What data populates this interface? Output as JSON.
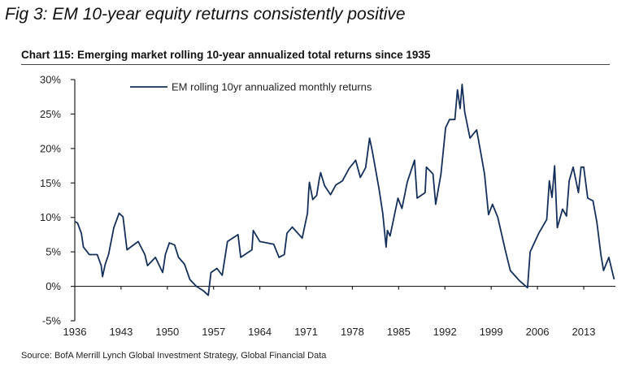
{
  "figure_title": "Fig 3: EM 10-year equity returns consistently positive",
  "source": "Source: BofA Merrill Lynch Global Investment Strategy, Global Financial Data",
  "chart_data": {
    "type": "line",
    "title": "Chart 115: Emerging market rolling 10-year annualized total returns since 1935",
    "xlabel": "",
    "ylabel": "",
    "xlim": [
      1936,
      2017.8
    ],
    "ylim": [
      -5,
      30
    ],
    "x_ticks": [
      1936,
      1943,
      1950,
      1957,
      1964,
      1971,
      1978,
      1985,
      1992,
      1999,
      2006,
      2013
    ],
    "y_ticks": [
      -5,
      0,
      5,
      10,
      15,
      20,
      25,
      30
    ],
    "y_tick_labels": [
      "-5%",
      "0%",
      "5%",
      "10%",
      "15%",
      "20%",
      "25%",
      "30%"
    ],
    "grid": false,
    "legend_position": "top-left",
    "line_color": "#14305a",
    "series": [
      {
        "name": "EM rolling 10yr annualized monthly returns",
        "points": [
          [
            1936.0,
            9.4
          ],
          [
            1936.4,
            9.2
          ],
          [
            1937.0,
            7.7
          ],
          [
            1937.3,
            5.7
          ],
          [
            1938.2,
            4.6
          ],
          [
            1939.4,
            4.6
          ],
          [
            1940.0,
            3.0
          ],
          [
            1940.2,
            1.4
          ],
          [
            1940.6,
            3.2
          ],
          [
            1941.1,
            4.6
          ],
          [
            1941.9,
            8.5
          ],
          [
            1942.7,
            10.6
          ],
          [
            1943.3,
            10.1
          ],
          [
            1943.9,
            5.3
          ],
          [
            1944.6,
            5.8
          ],
          [
            1945.6,
            6.5
          ],
          [
            1946.6,
            4.6
          ],
          [
            1947.0,
            3.0
          ],
          [
            1948.2,
            4.2
          ],
          [
            1949.3,
            2.0
          ],
          [
            1949.7,
            4.6
          ],
          [
            1950.3,
            6.3
          ],
          [
            1951.1,
            6.0
          ],
          [
            1951.7,
            4.2
          ],
          [
            1952.6,
            3.2
          ],
          [
            1953.4,
            1.0
          ],
          [
            1954.4,
            0.0
          ],
          [
            1955.4,
            -0.6
          ],
          [
            1956.2,
            -1.3
          ],
          [
            1956.6,
            2.0
          ],
          [
            1957.5,
            2.6
          ],
          [
            1958.3,
            1.6
          ],
          [
            1959.1,
            6.5
          ],
          [
            1960.7,
            7.5
          ],
          [
            1961.1,
            4.2
          ],
          [
            1962.8,
            5.3
          ],
          [
            1963.0,
            8.1
          ],
          [
            1964.0,
            6.5
          ],
          [
            1966.1,
            6.1
          ],
          [
            1966.9,
            4.2
          ],
          [
            1967.7,
            4.6
          ],
          [
            1968.1,
            7.7
          ],
          [
            1968.9,
            8.6
          ],
          [
            1970.4,
            7.0
          ],
          [
            1971.2,
            10.6
          ],
          [
            1971.4,
            14.0
          ],
          [
            1971.5,
            15.1
          ],
          [
            1972.0,
            12.6
          ],
          [
            1972.6,
            13.2
          ],
          [
            1973.0,
            15.6
          ],
          [
            1973.2,
            16.5
          ],
          [
            1973.8,
            14.6
          ],
          [
            1974.7,
            13.3
          ],
          [
            1975.5,
            14.7
          ],
          [
            1976.5,
            15.3
          ],
          [
            1977.5,
            17.1
          ],
          [
            1978.5,
            18.3
          ],
          [
            1979.2,
            15.8
          ],
          [
            1980.0,
            17.2
          ],
          [
            1980.6,
            21.5
          ],
          [
            1981.0,
            19.7
          ],
          [
            1982.0,
            14.3
          ],
          [
            1982.6,
            10.6
          ],
          [
            1983.1,
            5.7
          ],
          [
            1983.3,
            8.1
          ],
          [
            1983.7,
            7.3
          ],
          [
            1984.9,
            12.8
          ],
          [
            1985.5,
            11.3
          ],
          [
            1986.3,
            15.1
          ],
          [
            1987.4,
            18.3
          ],
          [
            1987.8,
            12.8
          ],
          [
            1989.0,
            13.6
          ],
          [
            1989.2,
            17.3
          ],
          [
            1990.2,
            16.3
          ],
          [
            1990.6,
            11.9
          ],
          [
            1991.4,
            16.3
          ],
          [
            1992.1,
            23.0
          ],
          [
            1992.7,
            24.2
          ],
          [
            1993.5,
            24.2
          ],
          [
            1993.9,
            28.5
          ],
          [
            1994.3,
            25.8
          ],
          [
            1994.6,
            29.3
          ],
          [
            1995.0,
            25.3
          ],
          [
            1995.8,
            21.5
          ],
          [
            1996.8,
            22.7
          ],
          [
            1997.4,
            19.5
          ],
          [
            1998.0,
            16.3
          ],
          [
            1998.6,
            10.4
          ],
          [
            1999.2,
            11.9
          ],
          [
            2000.0,
            10.0
          ],
          [
            2001.2,
            5.0
          ],
          [
            2001.9,
            2.3
          ],
          [
            2003.3,
            0.8
          ],
          [
            2004.5,
            -0.2
          ],
          [
            2004.9,
            5.0
          ],
          [
            2006.2,
            7.7
          ],
          [
            2007.4,
            9.7
          ],
          [
            2007.8,
            15.3
          ],
          [
            2008.2,
            12.9
          ],
          [
            2008.6,
            17.5
          ],
          [
            2009.0,
            8.5
          ],
          [
            2009.8,
            11.2
          ],
          [
            2010.4,
            10.2
          ],
          [
            2010.8,
            15.3
          ],
          [
            2011.4,
            17.3
          ],
          [
            2012.2,
            13.6
          ],
          [
            2012.6,
            17.3
          ],
          [
            2013.0,
            17.3
          ],
          [
            2013.6,
            12.8
          ],
          [
            2014.4,
            12.4
          ],
          [
            2015.0,
            9.3
          ],
          [
            2015.6,
            4.6
          ],
          [
            2016.0,
            2.3
          ],
          [
            2016.8,
            4.2
          ],
          [
            2017.6,
            1.0
          ]
        ]
      }
    ]
  }
}
